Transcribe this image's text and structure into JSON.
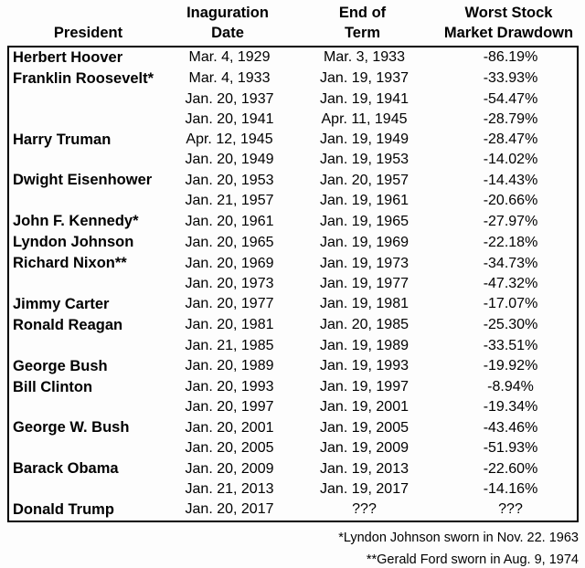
{
  "chart_data": {
    "type": "table",
    "columns": [
      {
        "line1": "",
        "line2": "President"
      },
      {
        "line1": "Inaguration",
        "line2": "Date"
      },
      {
        "line1": "End of",
        "line2": "Term"
      },
      {
        "line1": "Worst Stock",
        "line2": "Market Drawdown"
      }
    ],
    "rows": [
      [
        "Herbert Hoover",
        "Mar. 4, 1929",
        "Mar. 3, 1933",
        "-86.19%"
      ],
      [
        "Franklin Roosevelt*",
        "Mar. 4, 1933",
        "Jan. 19, 1937",
        "-33.93%"
      ],
      [
        "",
        "Jan. 20, 1937",
        "Jan. 19, 1941",
        "-54.47%"
      ],
      [
        "",
        "Jan. 20, 1941",
        "Apr. 11, 1945",
        "-28.79%"
      ],
      [
        "Harry Truman",
        "Apr. 12, 1945",
        "Jan. 19, 1949",
        "-28.47%"
      ],
      [
        "",
        "Jan. 20, 1949",
        "Jan. 19, 1953",
        "-14.02%"
      ],
      [
        "Dwight Eisenhower",
        "Jan. 20, 1953",
        "Jan. 20, 1957",
        "-14.43%"
      ],
      [
        "",
        "Jan. 21, 1957",
        "Jan. 19, 1961",
        "-20.66%"
      ],
      [
        "John F. Kennedy*",
        "Jan. 20, 1961",
        "Jan. 19, 1965",
        "-27.97%"
      ],
      [
        "Lyndon Johnson",
        "Jan. 20, 1965",
        "Jan. 19, 1969",
        "-22.18%"
      ],
      [
        "Richard Nixon**",
        "Jan. 20, 1969",
        "Jan. 19, 1973",
        "-34.73%"
      ],
      [
        "",
        "Jan. 20, 1973",
        "Jan. 19, 1977",
        "-47.32%"
      ],
      [
        "Jimmy Carter",
        "Jan. 20, 1977",
        "Jan. 19, 1981",
        "-17.07%"
      ],
      [
        "Ronald Reagan",
        "Jan. 20, 1981",
        "Jan. 20, 1985",
        "-25.30%"
      ],
      [
        "",
        "Jan. 21, 1985",
        "Jan. 19, 1989",
        "-33.51%"
      ],
      [
        "George Bush",
        "Jan. 20, 1989",
        "Jan. 19, 1993",
        "-19.92%"
      ],
      [
        "Bill Clinton",
        "Jan. 20, 1993",
        "Jan. 19, 1997",
        "-8.94%"
      ],
      [
        "",
        "Jan. 20, 1997",
        "Jan. 19, 2001",
        "-19.34%"
      ],
      [
        "George W. Bush",
        "Jan. 20, 2001",
        "Jan. 19, 2005",
        "-43.46%"
      ],
      [
        "",
        "Jan. 20, 2005",
        "Jan. 19, 2009",
        "-51.93%"
      ],
      [
        "Barack Obama",
        "Jan. 20, 2009",
        "Jan. 19, 2013",
        "-22.60%"
      ],
      [
        "",
        "Jan. 21, 2013",
        "Jan. 19, 2017",
        "-14.16%"
      ],
      [
        "Donald Trump",
        "Jan. 20, 2017",
        "???",
        "???"
      ]
    ],
    "footnotes": [
      "*Lyndon Johnson sworn in Nov. 22. 1963",
      "**Gerald Ford sworn in Aug. 9, 1974"
    ],
    "layout_hints": {
      "grid": "outer border only, no inner gridlines",
      "header_outside_border": true,
      "footnotes_position": "bottom-right"
    }
  },
  "colors": {
    "text": "#000000",
    "background": "#fdfdfd",
    "border": "#000000"
  }
}
